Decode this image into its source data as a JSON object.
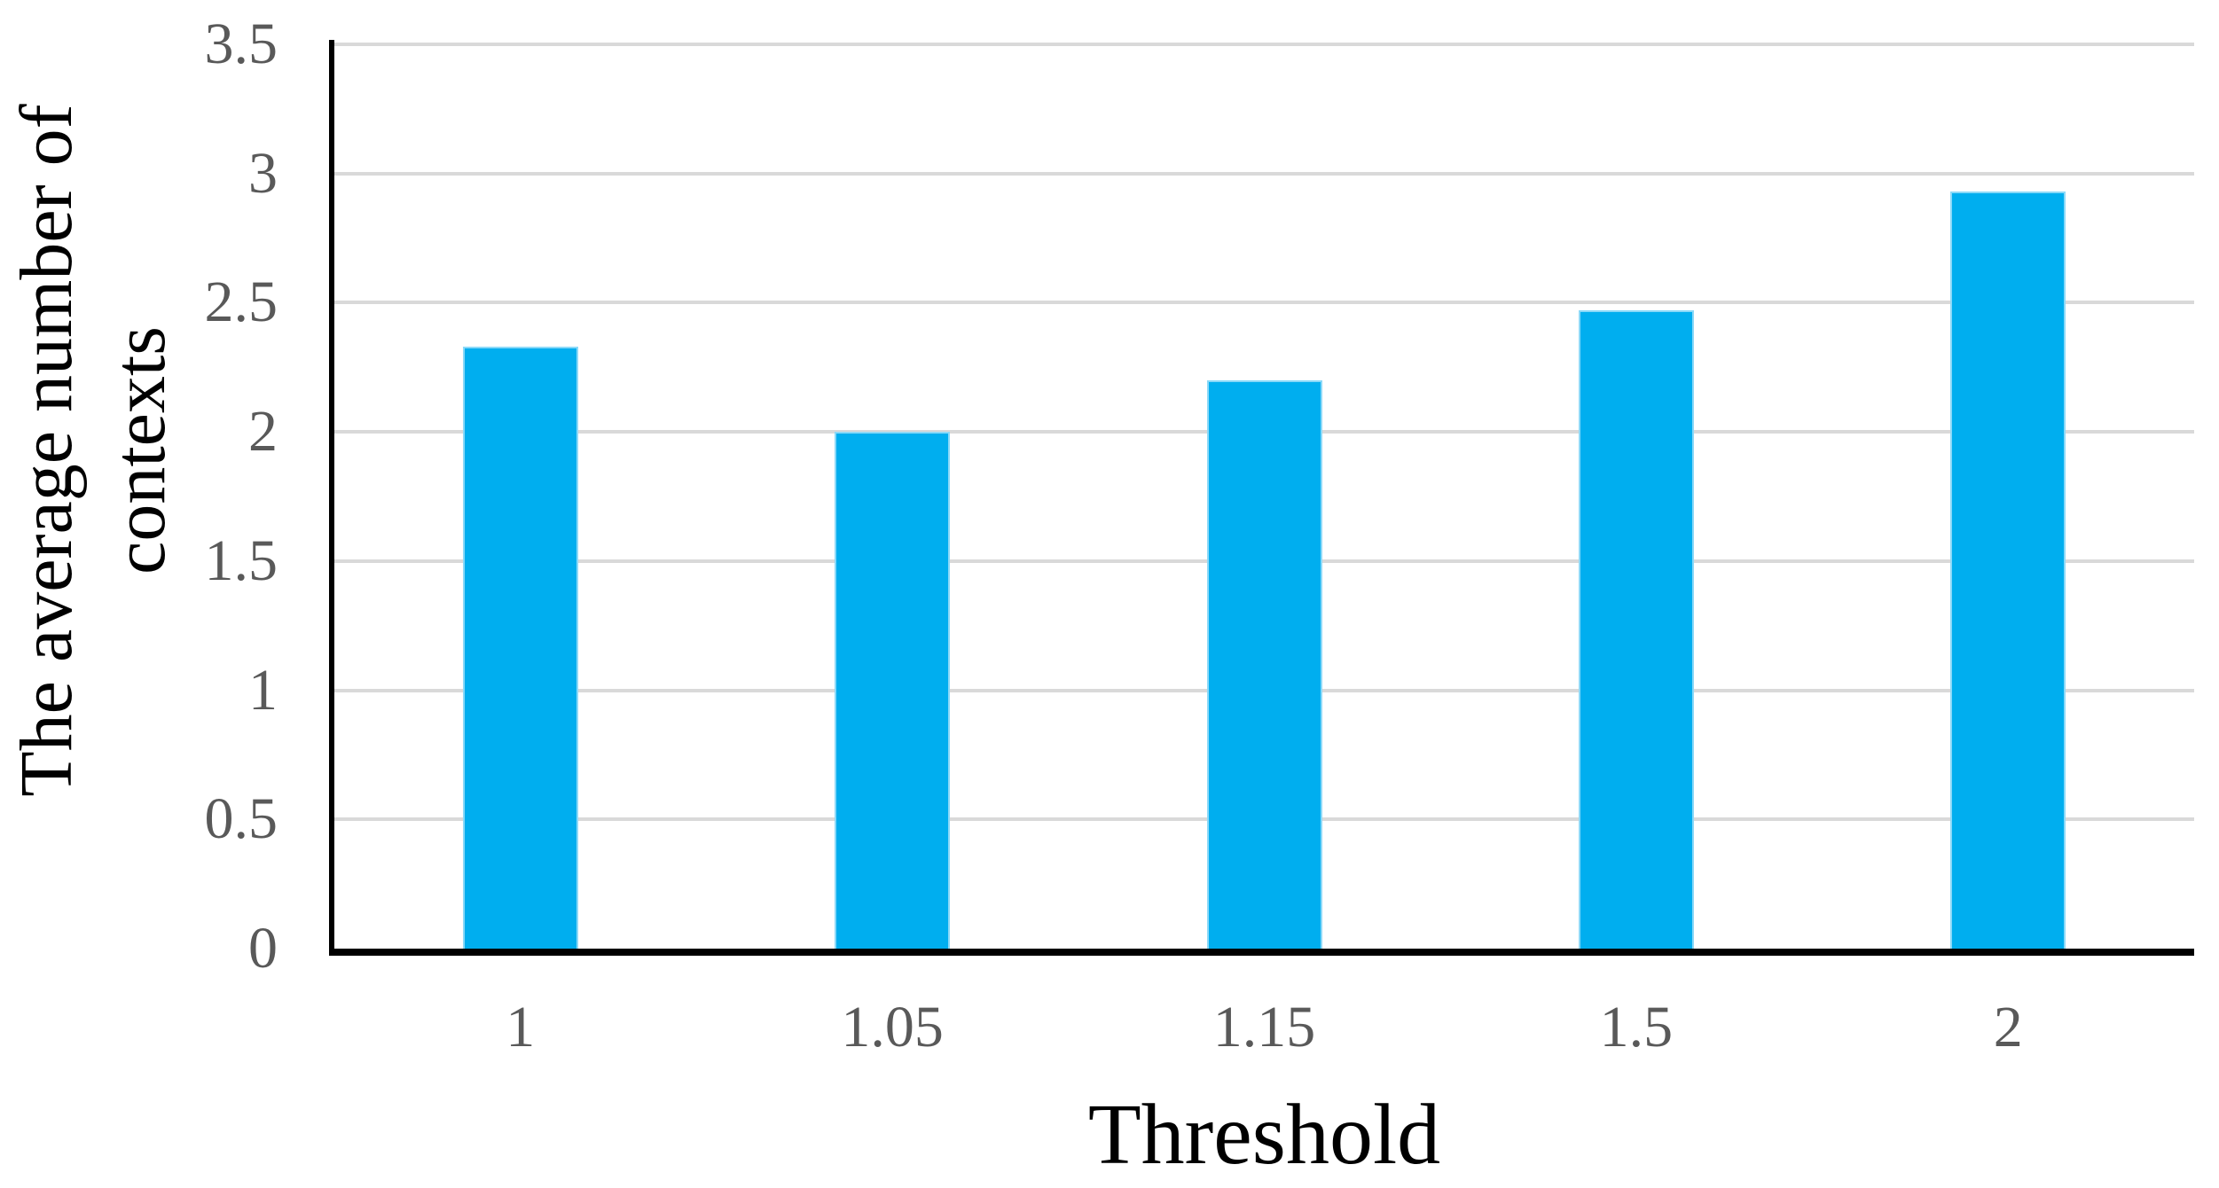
{
  "chart_data": {
    "type": "bar",
    "title": "",
    "xlabel": "Threshold",
    "ylabel": "The average number of contexts",
    "ylabel_lines": [
      "The average number of",
      "contexts"
    ],
    "categories": [
      "1",
      "1.05",
      "1.15",
      "1.5",
      "2"
    ],
    "values": [
      2.33,
      2.0,
      2.2,
      2.47,
      2.93
    ],
    "ylim": [
      0,
      3.5
    ],
    "ytick_step": 0.5,
    "yticks": [
      0,
      0.5,
      1,
      1.5,
      2,
      2.5,
      3,
      3.5
    ],
    "ytick_labels": [
      "0",
      "0.5",
      "1",
      "1.5",
      "2",
      "2.5",
      "3",
      "3.5"
    ],
    "grid": "horizontal",
    "legend": "none",
    "colors": {
      "bar_fill": "#00AEEF",
      "bar_edge": "#8BD9F8",
      "gridline": "#D9D9D9",
      "axis_line": "#000000",
      "tick_label": "#595959",
      "axis_title": "#000000"
    }
  }
}
